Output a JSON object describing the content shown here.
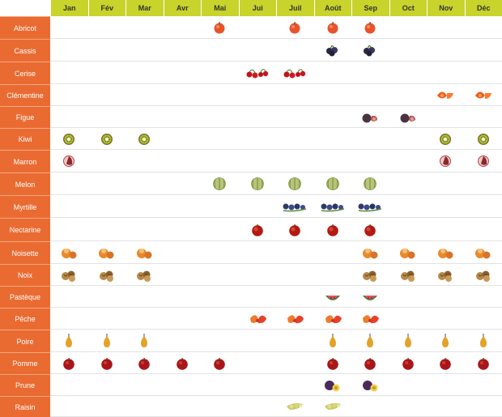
{
  "months": [
    "Jan",
    "Fév",
    "Mar",
    "Avr",
    "Mai",
    "Jui",
    "Juil",
    "Août",
    "Sep",
    "Oct",
    "Nov",
    "Déc"
  ],
  "colors": {
    "header": "#c8d32c",
    "label": "#ea6b32",
    "label_text": "#ffffff",
    "grid": "#e3e3e3"
  },
  "fruits": [
    {
      "name": "Abricot",
      "icon": "apricot-icon",
      "months": [
        5,
        7,
        8,
        9
      ]
    },
    {
      "name": "Cassis",
      "icon": "blackcurrant-icon",
      "months": [
        8,
        9
      ]
    },
    {
      "name": "Cerise",
      "icon": "cherry-icon",
      "months": [
        6,
        7
      ]
    },
    {
      "name": "Clémentine",
      "icon": "clementine-icon",
      "months": [
        11,
        12
      ]
    },
    {
      "name": "Figue",
      "icon": "fig-icon",
      "months": [
        9,
        10
      ]
    },
    {
      "name": "Kiwi",
      "icon": "kiwi-icon",
      "months": [
        1,
        2,
        3,
        11,
        12
      ]
    },
    {
      "name": "Marron",
      "icon": "chestnut-icon",
      "months": [
        1,
        11,
        12
      ]
    },
    {
      "name": "Melon",
      "icon": "melon-icon",
      "months": [
        5,
        6,
        7,
        8,
        9
      ]
    },
    {
      "name": "Myrtille",
      "icon": "blueberry-icon",
      "months": [
        7,
        8,
        9
      ]
    },
    {
      "name": "Nectarine",
      "icon": "nectarine-icon",
      "months": [
        6,
        7,
        8,
        9
      ]
    },
    {
      "name": "Noisette",
      "icon": "hazelnut-icon",
      "months": [
        1,
        2,
        3,
        9,
        10,
        11,
        12
      ]
    },
    {
      "name": "Noix",
      "icon": "walnut-icon",
      "months": [
        1,
        2,
        3,
        9,
        10,
        11,
        12
      ]
    },
    {
      "name": "Pastèque",
      "icon": "watermelon-icon",
      "months": [
        8,
        9
      ]
    },
    {
      "name": "Pêche",
      "icon": "peach-icon",
      "months": [
        6,
        7,
        8,
        9
      ]
    },
    {
      "name": "Poire",
      "icon": "pear-icon",
      "months": [
        1,
        2,
        3,
        8,
        9,
        10,
        11,
        12
      ]
    },
    {
      "name": "Pomme",
      "icon": "apple-icon",
      "months": [
        1,
        2,
        3,
        4,
        5,
        8,
        9,
        10,
        11,
        12
      ]
    },
    {
      "name": "Prune",
      "icon": "plum-icon",
      "months": [
        8,
        9
      ]
    },
    {
      "name": "Raisin",
      "icon": "grape-icon",
      "months": [
        7,
        8
      ]
    }
  ]
}
